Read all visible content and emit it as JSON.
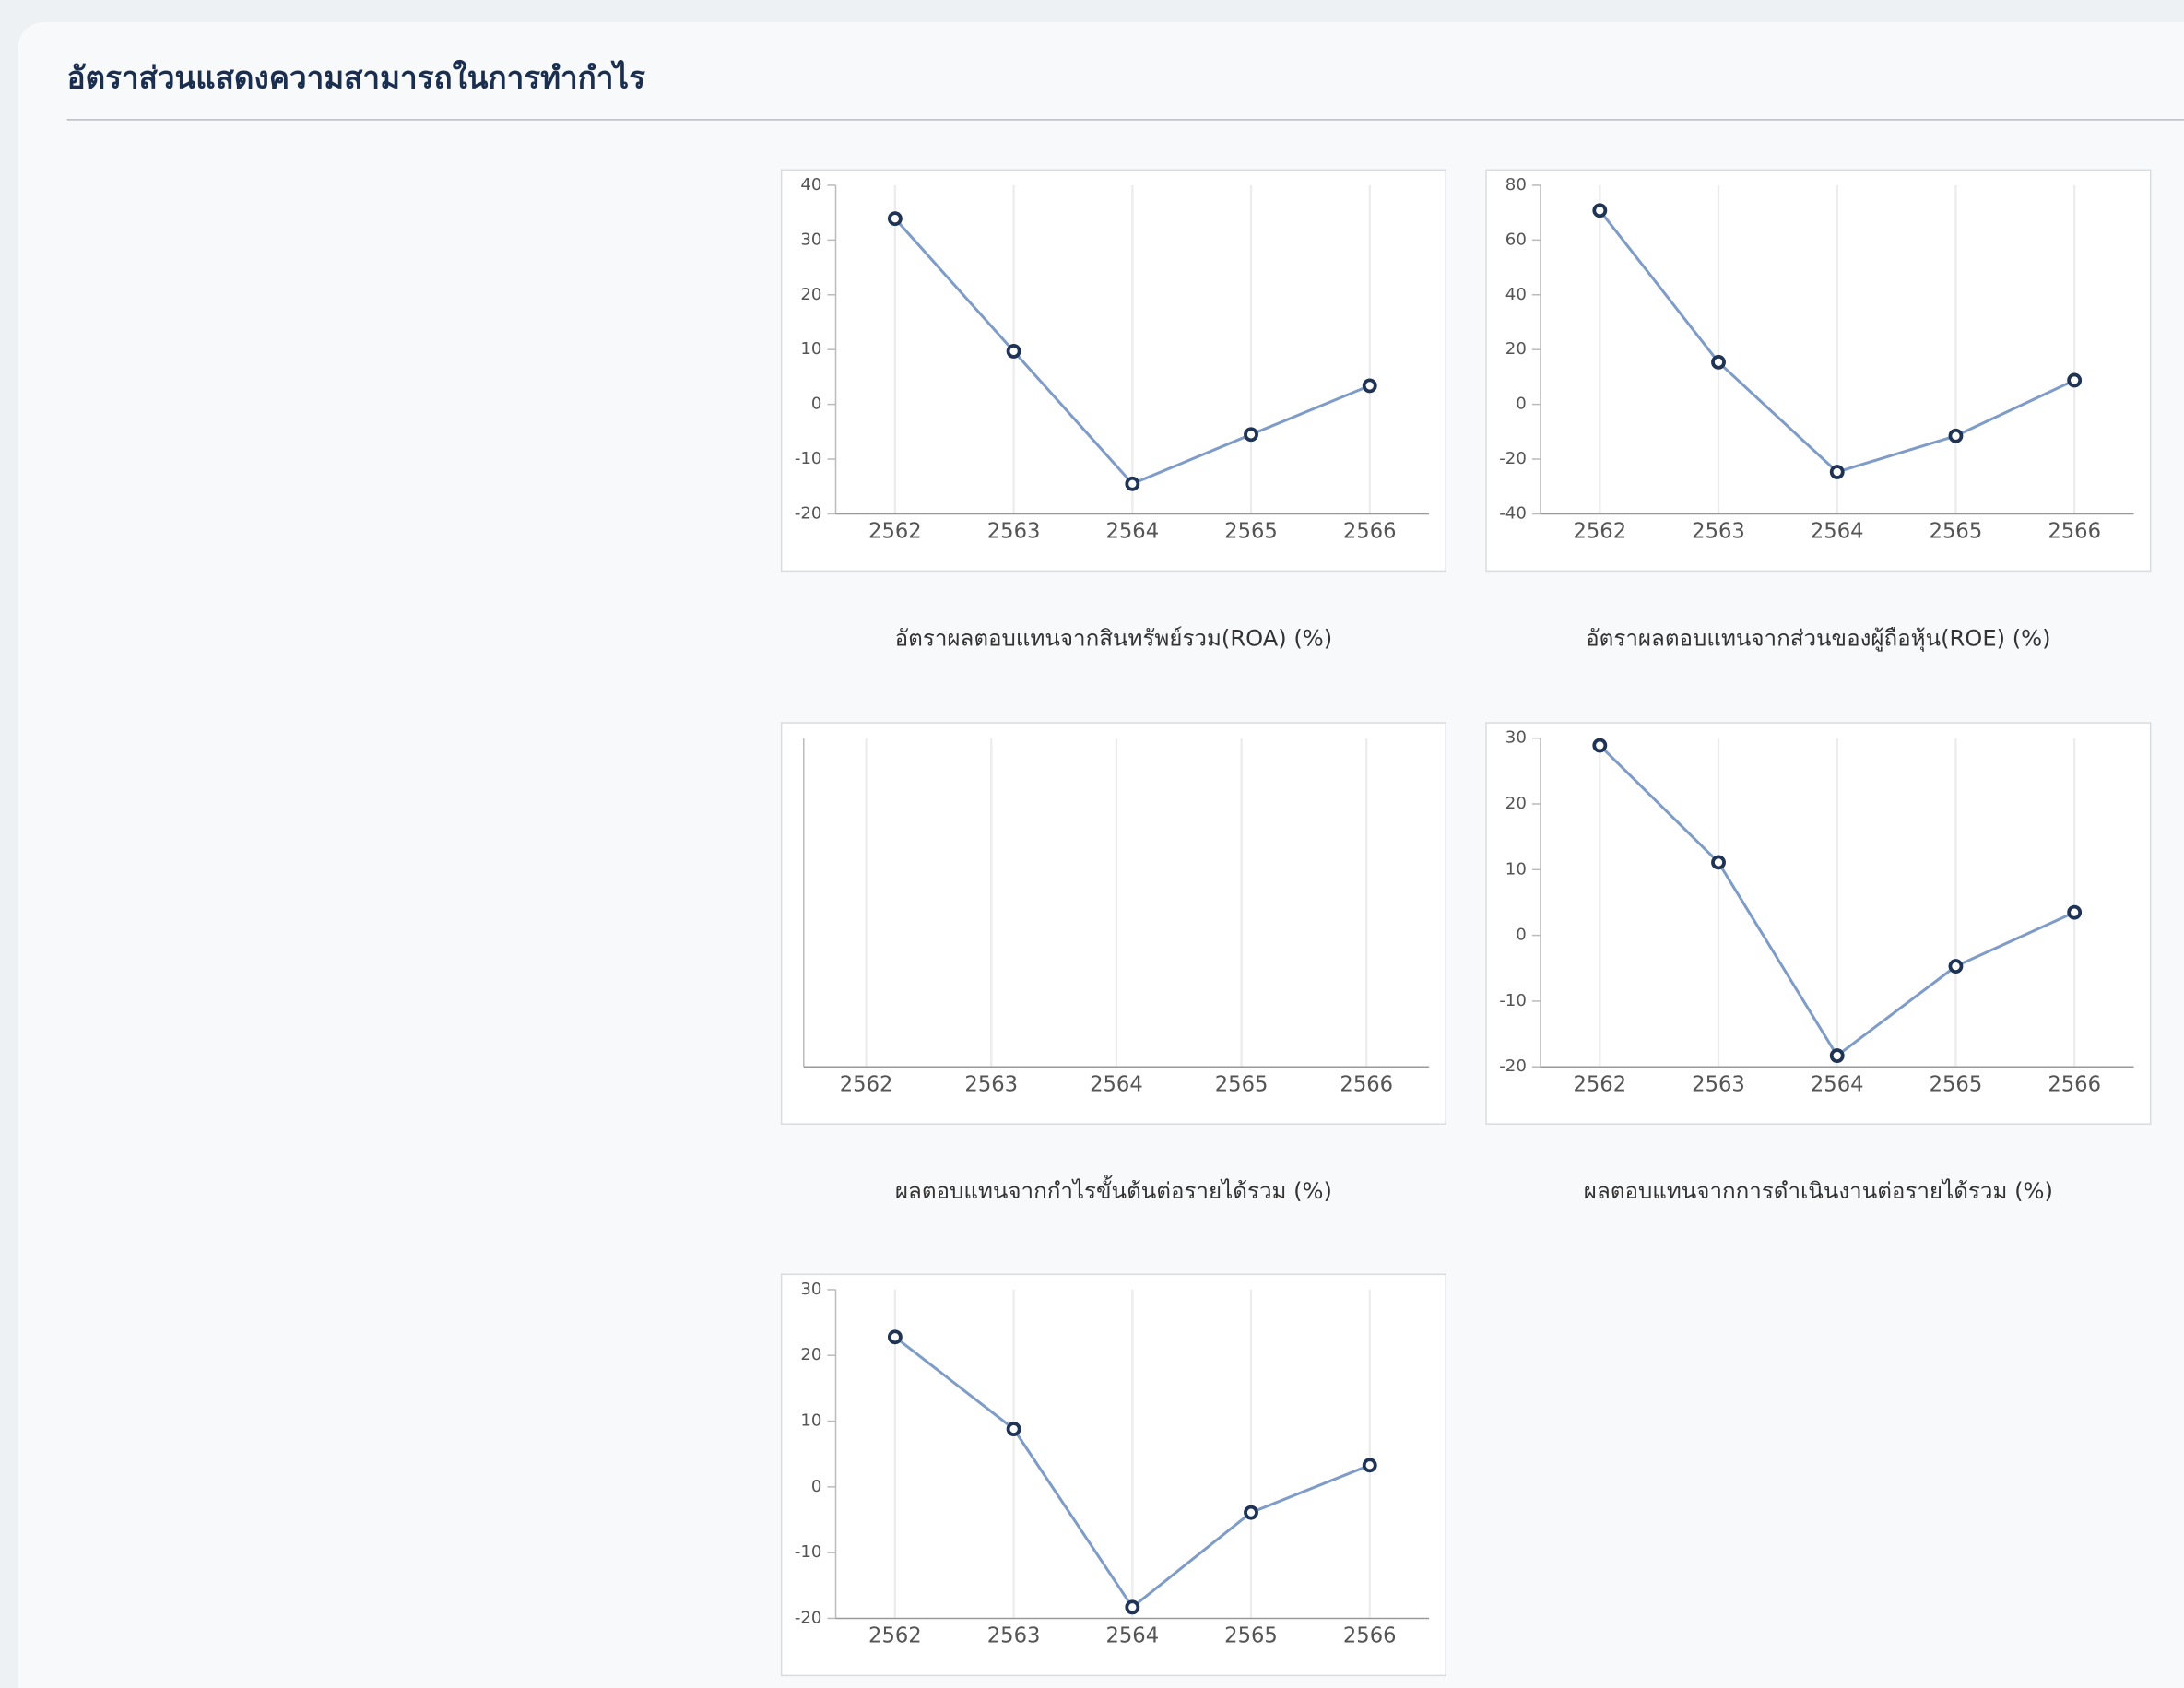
{
  "header": {
    "title": "อัตราส่วนแสดงความสามารถในการทำกำไร"
  },
  "chart_data": [
    {
      "type": "line",
      "title": "อัตราผลตอบแทนจากสินทรัพย์รวม(ROA) (%)",
      "categories": [
        "2562",
        "2563",
        "2564",
        "2565",
        "2566"
      ],
      "values": [
        33.9,
        9.7,
        -14.5,
        -5.5,
        3.4
      ],
      "color": "#7f9cc8",
      "marker_color": "#1f3355",
      "ylim": [
        -20,
        40
      ],
      "yticks": [
        -20,
        -10,
        0,
        10,
        20,
        30,
        40
      ],
      "grid": "x"
    },
    {
      "type": "line",
      "title": "อัตราผลตอบแทนจากส่วนของผู้ถือหุ้น(ROE) (%)",
      "categories": [
        "2562",
        "2563",
        "2564",
        "2565",
        "2566"
      ],
      "values": [
        70.8,
        15.4,
        -24.7,
        -11.5,
        8.8
      ],
      "color": "#7f9cc8",
      "marker_color": "#1f3355",
      "ylim": [
        -40,
        80
      ],
      "yticks": [
        -40,
        -20,
        0,
        20,
        40,
        60,
        80
      ],
      "grid": "x"
    },
    {
      "type": "line",
      "title": "ผลตอบแทนจากกำไรขั้นต้นต่อรายได้รวม (%)",
      "categories": [
        "2562",
        "2563",
        "2564",
        "2565",
        "2566"
      ],
      "color": "#7f9cc8",
      "grid": "x"
    },
    {
      "type": "line",
      "title": "ผลตอบแทนจากการดำเนินงานต่อรายได้รวม (%)",
      "categories": [
        "2562",
        "2563",
        "2564",
        "2565",
        "2566"
      ],
      "values": [
        28.9,
        11.1,
        -18.3,
        -4.7,
        3.5
      ],
      "color": "#7f9cc8",
      "marker_color": "#1f3355",
      "ylim": [
        -20,
        30
      ],
      "yticks": [
        -20,
        -10,
        0,
        10,
        20,
        30
      ],
      "grid": "x"
    },
    {
      "type": "line",
      "categories": [
        "2562",
        "2563",
        "2564",
        "2565",
        "2566"
      ],
      "values": [
        22.8,
        8.8,
        -18.3,
        -3.9,
        3.3
      ],
      "color": "#7f9cc8",
      "marker_color": "#1f3355",
      "ylim": [
        -20,
        30
      ],
      "yticks": [
        -20,
        -10,
        0,
        10,
        20,
        30
      ],
      "grid": "x"
    }
  ]
}
